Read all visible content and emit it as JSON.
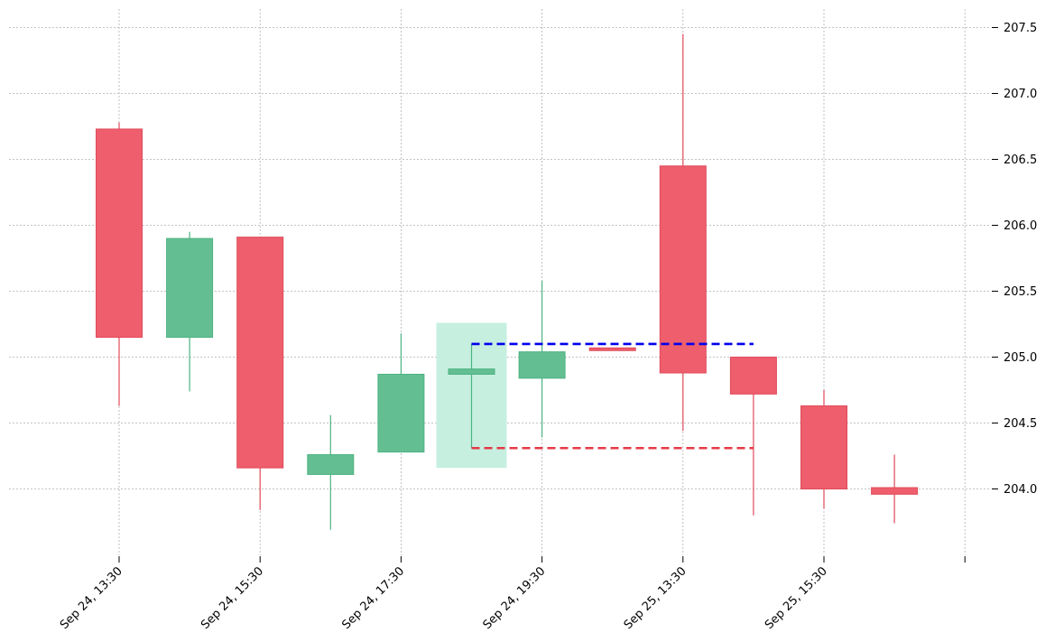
{
  "chart_data": {
    "type": "candlestick",
    "title": "",
    "xlabel": "",
    "ylabel": "",
    "ylim": [
      203.53,
      207.62
    ],
    "y_axis_side": "right",
    "grid": true,
    "x_tick_labels": [
      "Sep 24, 13:30",
      "Sep 24, 15:30",
      "Sep 24, 17:30",
      "Sep 24, 19:30",
      "Sep 25, 13:30",
      "Sep 25, 15:30",
      ""
    ],
    "y_ticks": [
      204.0,
      204.5,
      205.0,
      205.5,
      206.0,
      206.5,
      207.0,
      207.5
    ],
    "y_tick_labels": [
      "204.0",
      "204.5",
      "205.0",
      "205.5",
      "206.0",
      "206.5",
      "207.0",
      "207.5"
    ],
    "candles": [
      {
        "open": 206.73,
        "high": 206.78,
        "low": 204.63,
        "close": 205.15
      },
      {
        "open": 205.15,
        "high": 205.95,
        "low": 204.74,
        "close": 205.9
      },
      {
        "open": 205.91,
        "high": 205.91,
        "low": 203.84,
        "close": 204.16
      },
      {
        "open": 204.11,
        "high": 204.56,
        "low": 203.69,
        "close": 204.26
      },
      {
        "open": 204.28,
        "high": 205.18,
        "low": 204.28,
        "close": 204.87
      },
      {
        "open": 204.87,
        "high": 205.1,
        "low": 204.31,
        "close": 204.91
      },
      {
        "open": 204.84,
        "high": 205.58,
        "low": 204.39,
        "close": 205.04
      },
      {
        "open": 205.07,
        "high": 205.07,
        "low": 205.05,
        "close": 205.05
      },
      {
        "open": 206.45,
        "high": 207.45,
        "low": 204.44,
        "close": 204.88
      },
      {
        "open": 205.0,
        "high": 205.0,
        "low": 203.8,
        "close": 204.72
      },
      {
        "open": 204.63,
        "high": 204.75,
        "low": 203.85,
        "close": 204.0
      },
      {
        "open": 204.01,
        "high": 204.26,
        "low": 203.74,
        "close": 203.96
      }
    ],
    "highlight_band": {
      "from_index": 5,
      "ymin": 204.16,
      "ymax": 205.26
    },
    "levels": [
      {
        "kind": "resistance",
        "value": 205.1,
        "from_index": 5,
        "to_index": 9
      },
      {
        "kind": "support",
        "value": 204.31,
        "from_index": 5,
        "to_index": 9
      }
    ],
    "colors": {
      "up": "#4db382",
      "up_fill": "#63be92",
      "down": "#e04a5a",
      "down_fill": "#ee5e6c",
      "highlight_band": "#c6efe0",
      "resistance_line": "#0000ee",
      "support_line": "#e63946",
      "grid": "#b0b0b0",
      "axis_text": "#000000"
    }
  }
}
